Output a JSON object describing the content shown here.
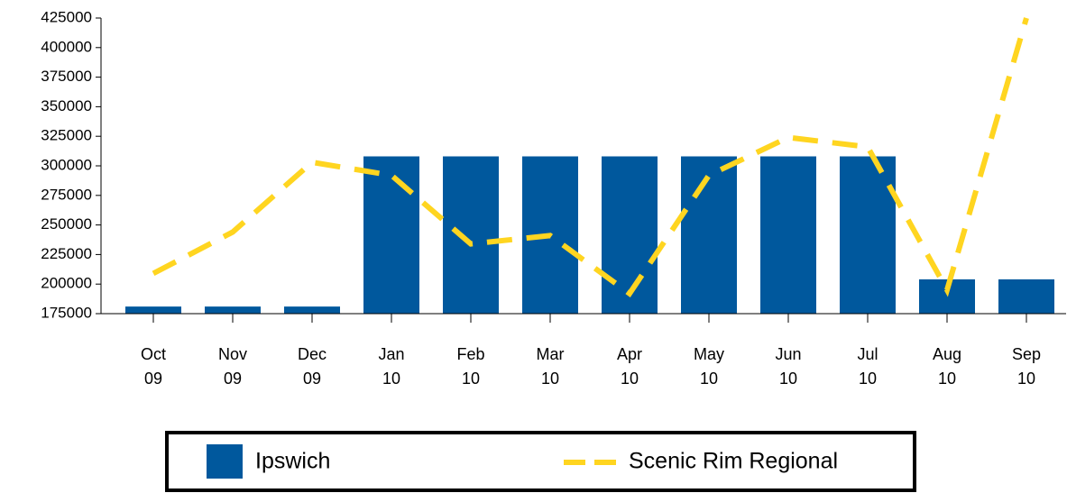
{
  "chart_data": {
    "type": "bar-line",
    "categories": [
      "Oct 09",
      "Nov 09",
      "Dec 09",
      "Jan 10",
      "Feb 10",
      "Mar 10",
      "Apr 10",
      "May 10",
      "Jun 10",
      "Jul 10",
      "Aug 10",
      "Sep 10"
    ],
    "series": [
      {
        "name": "Ipswich",
        "type": "bar",
        "color": "#00589d",
        "values": [
          181000,
          181000,
          181000,
          308000,
          308000,
          308000,
          308000,
          308000,
          308000,
          308000,
          204000,
          204000
        ]
      },
      {
        "name": "Scenic Rim Regional",
        "type": "line",
        "color": "#ffd520",
        "values": [
          209000,
          244000,
          303000,
          292000,
          234000,
          241000,
          192000,
          292000,
          324000,
          316000,
          195000,
          425000
        ]
      }
    ],
    "ylim": [
      175000,
      425000
    ],
    "yticks": [
      175000,
      200000,
      225000,
      250000,
      275000,
      300000,
      325000,
      350000,
      375000,
      400000,
      425000
    ],
    "legend": "bottom"
  }
}
